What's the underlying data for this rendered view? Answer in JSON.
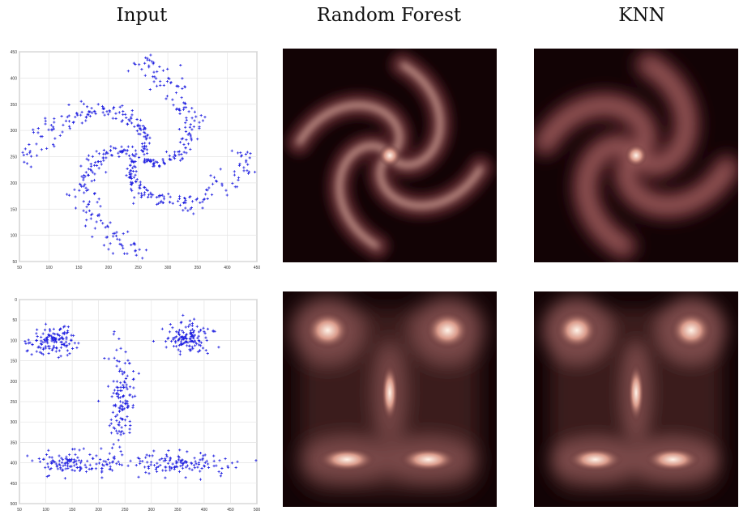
{
  "headers": {
    "input": "Input",
    "random_forest": "Random Forest",
    "knn": "KNN"
  },
  "colors": {
    "scatter_point": "#1f1fe0",
    "density_background": "#120305",
    "density_peak": "#fff3e8"
  },
  "chart_data": [
    {
      "type": "scatter",
      "name": "spiral-input",
      "xlim": [
        50,
        450
      ],
      "ylim": [
        50,
        450
      ],
      "xticks": [
        50,
        100,
        150,
        200,
        250,
        300,
        350,
        400,
        450
      ],
      "yticks": [
        50,
        100,
        150,
        200,
        250,
        300,
        350,
        400,
        450
      ],
      "xtick_labels": [
        "50",
        "100",
        "150",
        "200",
        "250",
        "300",
        "350",
        "400",
        "450"
      ],
      "ytick_labels": [
        "50",
        "100",
        "150",
        "200",
        "250",
        "300",
        "350",
        "400",
        "450"
      ],
      "grid": true,
      "shape": "four-arm spiral",
      "center": [
        250,
        250
      ],
      "arms": 4
    },
    {
      "type": "scatter",
      "name": "face-input",
      "xlim": [
        50,
        500
      ],
      "ylim": [
        0,
        500
      ],
      "y_inverted": true,
      "xticks": [
        50,
        100,
        150,
        200,
        250,
        300,
        350,
        400,
        450,
        500
      ],
      "yticks": [
        0,
        50,
        100,
        150,
        200,
        250,
        300,
        350,
        400,
        450,
        500
      ],
      "xtick_labels": [
        "50",
        "100",
        "150",
        "200",
        "250",
        "300",
        "350",
        "400",
        "450",
        "500"
      ],
      "ytick_labels": [
        "0",
        "50",
        "100",
        "150",
        "200",
        "250",
        "300",
        "350",
        "400",
        "450",
        "500"
      ],
      "grid": true,
      "clusters": [
        {
          "center": [
            110,
            100
          ],
          "spread": [
            22,
            18
          ]
        },
        {
          "center": [
            370,
            95
          ],
          "spread": [
            22,
            18
          ]
        },
        {
          "center": [
            245,
            240
          ],
          "spread": [
            12,
            55
          ]
        },
        {
          "center": [
            155,
            400
          ],
          "spread": [
            45,
            14
          ]
        },
        {
          "center": [
            350,
            400
          ],
          "spread": [
            50,
            14
          ]
        }
      ]
    },
    {
      "type": "heatmap",
      "name": "spiral-random-forest",
      "method": "Random Forest",
      "shape": "four-arm spiral"
    },
    {
      "type": "heatmap",
      "name": "spiral-knn",
      "method": "KNN",
      "shape": "four-arm spiral"
    },
    {
      "type": "heatmap",
      "name": "face-random-forest",
      "method": "Random Forest",
      "shape": "two eyes, nose, mouth"
    },
    {
      "type": "heatmap",
      "name": "face-knn",
      "method": "KNN",
      "shape": "two eyes, nose, mouth"
    }
  ]
}
